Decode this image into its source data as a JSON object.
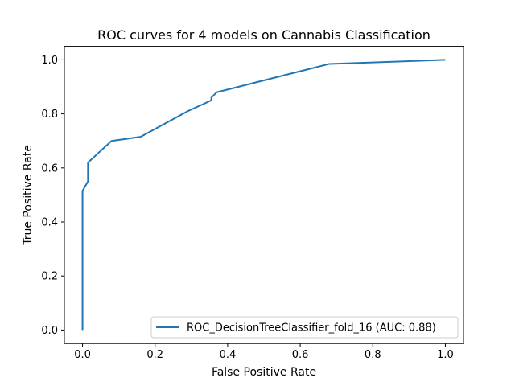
{
  "chart_data": {
    "type": "line",
    "title": "ROC curves for 4 models on Cannabis Classification",
    "xlabel": "False Positive Rate",
    "ylabel": "True Positive Rate",
    "xlim": [
      -0.05,
      1.05
    ],
    "ylim": [
      -0.05,
      1.05
    ],
    "xticks": [
      "0.0",
      "0.2",
      "0.4",
      "0.6",
      "0.8",
      "1.0"
    ],
    "yticks": [
      "0.0",
      "0.2",
      "0.4",
      "0.6",
      "0.8",
      "1.0"
    ],
    "grid": false,
    "legend_position": "lower right",
    "series": [
      {
        "name": "ROC_DecisionTreeClassifier_fold_16 (AUC: 0.88)",
        "color": "#1f77b4",
        "x": [
          0.0,
          0.0,
          0.015,
          0.015,
          0.08,
          0.16,
          0.29,
          0.355,
          0.355,
          0.37,
          0.68,
          1.0
        ],
        "y": [
          0.0,
          0.515,
          0.55,
          0.62,
          0.7,
          0.715,
          0.81,
          0.85,
          0.86,
          0.88,
          0.985,
          1.0
        ]
      }
    ]
  }
}
